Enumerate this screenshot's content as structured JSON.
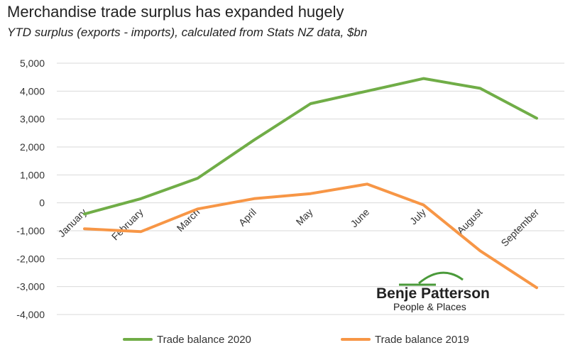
{
  "chart_data": {
    "type": "line",
    "title": "Merchandise trade surplus has expanded hugely",
    "subtitle": "YTD surplus (exports - imports), calculated from Stats NZ data, $bn",
    "xlabel": "",
    "ylabel": "",
    "categories": [
      "January",
      "February",
      "March",
      "April",
      "May",
      "June",
      "July",
      "August",
      "September"
    ],
    "ylim": [
      -4000,
      5000
    ],
    "yticks": [
      "5,000",
      "4,000",
      "3,000",
      "2,000",
      "1,000",
      "0",
      "-1,000",
      "-2,000",
      "-3,000",
      "-4,000"
    ],
    "ytick_values": [
      5000,
      4000,
      3000,
      2000,
      1000,
      0,
      -1000,
      -2000,
      -3000,
      -4000
    ],
    "grid": true,
    "legend_position": "bottom",
    "series": [
      {
        "name": "Trade balance 2020",
        "color": "#70AD47",
        "values": [
          -400,
          150,
          880,
          2250,
          3550,
          4000,
          4450,
          4100,
          3030
        ]
      },
      {
        "name": "Trade balance 2019",
        "color": "#F79646",
        "values": [
          -930,
          -1030,
          -220,
          150,
          330,
          670,
          -80,
          -1720,
          -3040
        ]
      }
    ]
  },
  "logo": {
    "name": "Benje Patterson",
    "tagline": "People & Places",
    "color": "#4A9A3A"
  }
}
